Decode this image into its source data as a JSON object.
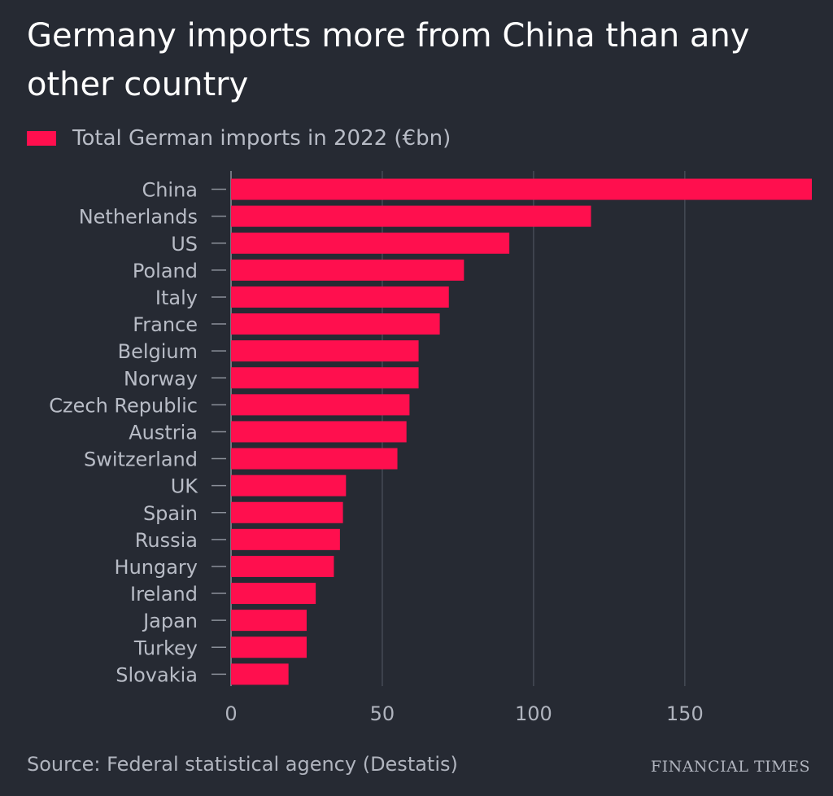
{
  "header": {
    "title": "Germany imports more from China than any other country"
  },
  "legend": {
    "label": "Total German imports in 2022 (€bn)"
  },
  "footer": {
    "source": "Source: Federal statistical agency (Destatis)",
    "brand": "FINANCIAL TIMES"
  },
  "colors": {
    "background": "#262a33",
    "bar": "#ff0f4e",
    "grid": "#454a55",
    "axis_text": "#b0b4be",
    "label_text": "#b8bcc6"
  },
  "chart_data": {
    "type": "bar",
    "orientation": "horizontal",
    "title": "Germany imports more from China than any other country",
    "xlabel": "",
    "ylabel": "",
    "xlim": [
      0,
      192
    ],
    "xticks": [
      0,
      50,
      100,
      150
    ],
    "grid": true,
    "legend_position": "top-left",
    "series": [
      {
        "name": "Total German imports in 2022 (€bn)",
        "values": [
          192,
          119,
          92,
          77,
          72,
          69,
          62,
          62,
          59,
          58,
          55,
          38,
          37,
          36,
          34,
          28,
          25,
          25,
          19
        ]
      }
    ],
    "categories": [
      "China",
      "Netherlands",
      "US",
      "Poland",
      "Italy",
      "France",
      "Belgium",
      "Norway",
      "Czech Republic",
      "Austria",
      "Switzerland",
      "UK",
      "Spain",
      "Russia",
      "Hungary",
      "Ireland",
      "Japan",
      "Turkey",
      "Slovakia"
    ]
  }
}
